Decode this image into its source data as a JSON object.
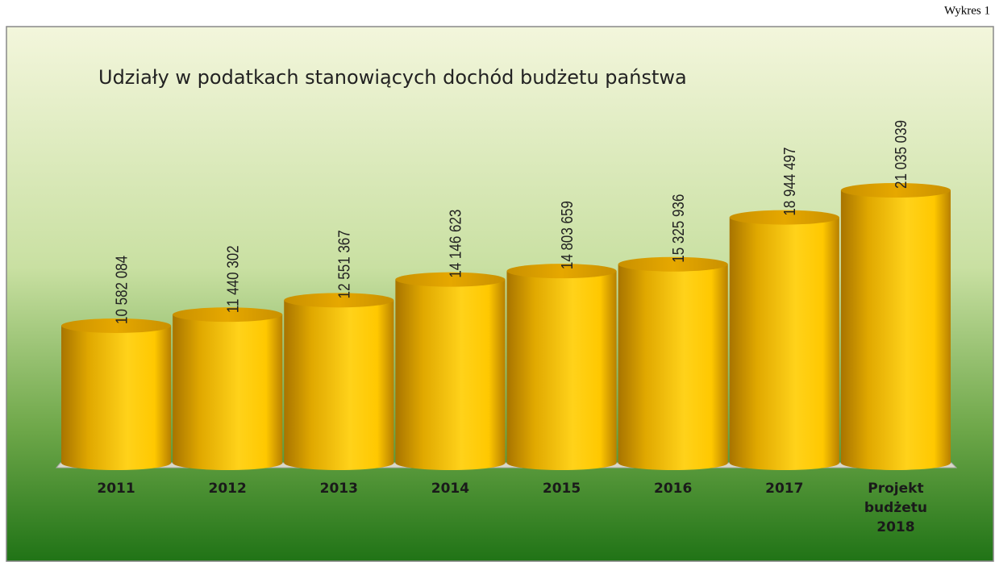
{
  "chart_data": {
    "type": "bar",
    "caption": "Wykres 1",
    "title": "Udziały w podatkach stanowiących dochód budżetu państwa",
    "categories": [
      "2011",
      "2012",
      "2013",
      "2014",
      "2015",
      "2016",
      "2017",
      "Projekt budżetu 2018"
    ],
    "values": [
      10582084,
      11440302,
      12551367,
      14146623,
      14803659,
      15325936,
      18944497,
      21035039
    ],
    "value_labels": [
      "10 582 084",
      "11 440 302",
      "12 551 367",
      "14 146 623",
      "14 803 659",
      "15 325 936",
      "18 944 497",
      "21 035 039"
    ],
    "color": "#f2b600"
  }
}
